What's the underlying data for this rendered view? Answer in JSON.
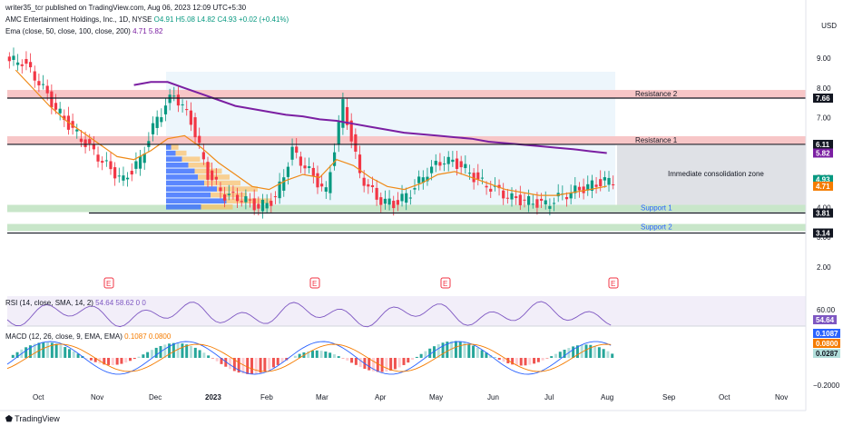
{
  "header": {
    "published": "writer35_tcr published on TradingView.com, Aug 06, 2023 12:09 UTC+5:30",
    "symbol": "AMC Entertainment Holdings, Inc., 1D, NYSE",
    "ohlc": "O4.91 H5.08 L4.82 C4.93 +0.02 (+0.41%)",
    "ema_label": "Ema (close, 50, close, 100, close, 200)",
    "ema_vals": "4.71  5.82",
    "currency": "USD"
  },
  "levels": {
    "resistance2": "Resistance 2",
    "resistance1": "Resistance 1",
    "support1": "Support 1",
    "support2": "Support 2",
    "consolidation": "Immediate consolidation zone"
  },
  "price_badges": [
    {
      "label": "7.66",
      "value": 7.66,
      "bg": "#131722"
    },
    {
      "label": "6.11",
      "value": 6.11,
      "bg": "#131722"
    },
    {
      "label": "5.82",
      "value": 5.82,
      "bg": "#7b1fa2"
    },
    {
      "label": "4.93",
      "value": 4.93,
      "bg": "#089981"
    },
    {
      "label": "4.71",
      "value": 4.71,
      "bg": "#f57c00"
    },
    {
      "label": "3.81",
      "value": 3.81,
      "bg": "#131722"
    },
    {
      "label": "3.14",
      "value": 3.14,
      "bg": "#131722"
    }
  ],
  "price_ticks": [
    "9.00",
    "8.00",
    "7.00",
    "6.00",
    "5.00",
    "4.00",
    "3.00",
    "2.00"
  ],
  "rsi": {
    "label": "RSI (14, close, SMA, 14, 2)",
    "vals": "54.64  58.62  0  0",
    "badge": "54.64",
    "tick": "60.00"
  },
  "macd": {
    "label": "MACD (12, 26, close, 9, EMA, EMA)",
    "vals": "0.1087  0.0800",
    "badges": [
      "0.1087",
      "0.0800",
      "0.0287"
    ],
    "tick": "−0.2000"
  },
  "events": [
    "E",
    "E",
    "E",
    "E"
  ],
  "footer": "TradingView",
  "chart_data": {
    "type": "candlestick",
    "x_labels": [
      "Oct",
      "Nov",
      "Dec",
      "2023",
      "Feb",
      "Mar",
      "Apr",
      "May",
      "Jun",
      "Jul",
      "Aug",
      "Sep",
      "Oct",
      "Nov"
    ],
    "ylim": [
      1.7,
      9.5
    ],
    "close_approx": [
      8.9,
      8.2,
      7.3,
      6.6,
      6.0,
      5.4,
      4.9,
      5.6,
      7.0,
      7.8,
      6.9,
      5.1,
      4.4,
      4.3,
      4.0,
      4.3,
      5.9,
      5.2,
      4.5,
      7.5,
      5.1,
      4.3,
      4.1,
      4.5,
      5.2,
      5.6,
      5.4,
      4.9,
      4.6,
      4.3,
      4.2,
      4.1,
      4.4,
      4.6,
      4.8,
      4.93
    ],
    "ema_mid": [
      8.6,
      8.0,
      7.4,
      6.9,
      6.5,
      6.1,
      5.7,
      5.6,
      5.9,
      6.3,
      6.4,
      6.0,
      5.5,
      5.1,
      4.7,
      4.6,
      4.9,
      5.1,
      5.0,
      5.6,
      5.4,
      5.0,
      4.7,
      4.6,
      4.8,
      5.1,
      5.2,
      5.0,
      4.8,
      4.6,
      4.5,
      4.4,
      4.4,
      4.5,
      4.6,
      4.71
    ],
    "ema_long": [
      null,
      null,
      null,
      null,
      null,
      null,
      null,
      8.1,
      8.2,
      8.2,
      8.0,
      7.8,
      7.6,
      7.4,
      7.3,
      7.2,
      7.1,
      7.05,
      6.95,
      6.9,
      6.8,
      6.7,
      6.6,
      6.5,
      6.45,
      6.4,
      6.35,
      6.3,
      6.2,
      6.15,
      6.1,
      6.05,
      6.0,
      5.95,
      5.88,
      5.82
    ],
    "resistance": [
      7.66,
      6.11
    ],
    "support": [
      3.81,
      3.14
    ]
  }
}
